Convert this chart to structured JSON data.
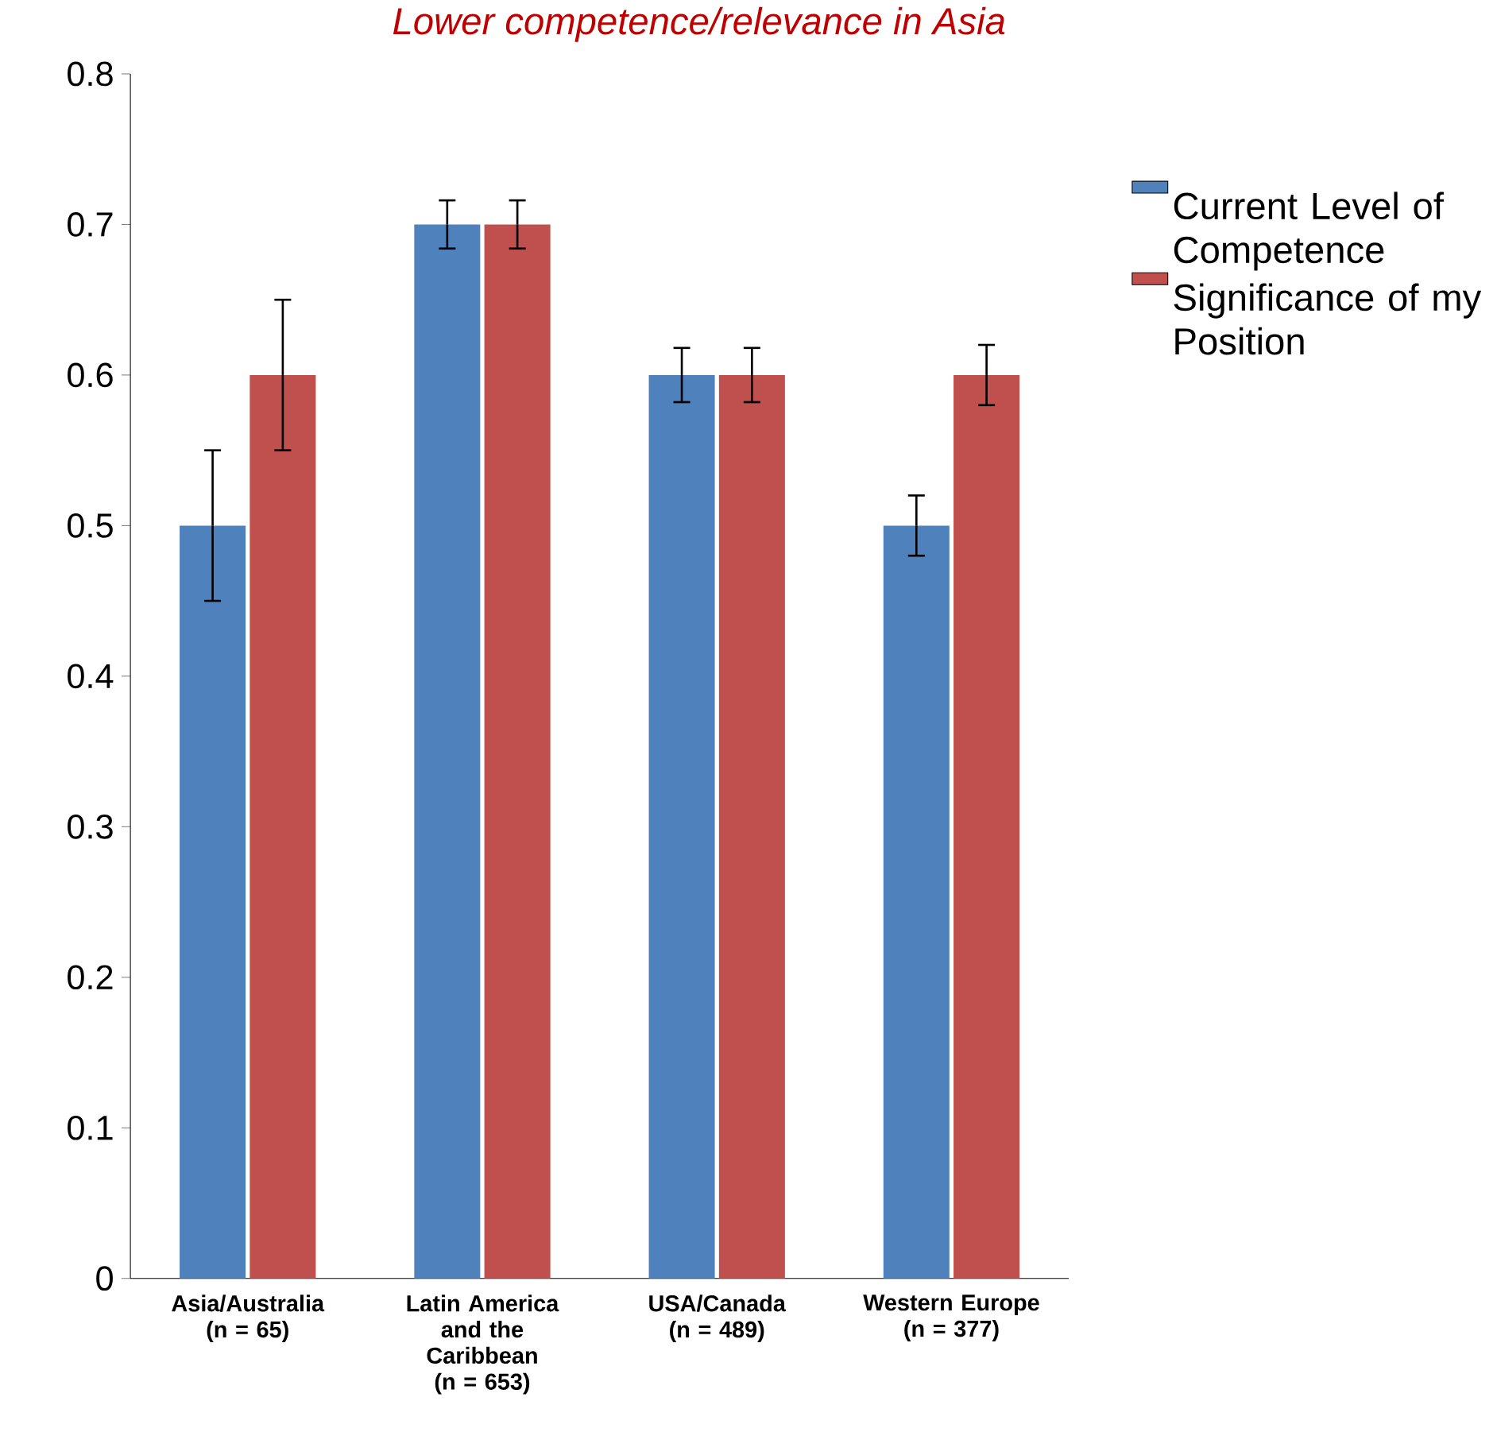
{
  "chart_data": {
    "type": "bar",
    "title": "Lower competence/relevance in Asia",
    "categories": [
      "Asia/Australia (n = 65)",
      "Latin America and the Caribbean (n = 653)",
      "USA/Canada (n = 489)",
      "Western Europe (n = 377)"
    ],
    "series": [
      {
        "name": "Current Level of Competence",
        "color": "#4f81bd",
        "values": [
          0.5,
          0.7,
          0.6,
          0.5
        ],
        "errors": [
          0.05,
          0.016,
          0.018,
          0.02
        ]
      },
      {
        "name": "Significance of my Position",
        "color": "#c0504d",
        "values": [
          0.6,
          0.7,
          0.6,
          0.6
        ],
        "errors": [
          0.05,
          0.016,
          0.018,
          0.02
        ]
      }
    ],
    "ylim": [
      0,
      0.8
    ],
    "yticks": [
      0,
      0.1,
      0.2,
      0.3,
      0.4,
      0.5,
      0.6,
      0.7,
      0.8
    ],
    "grid": false,
    "legend": "right"
  }
}
